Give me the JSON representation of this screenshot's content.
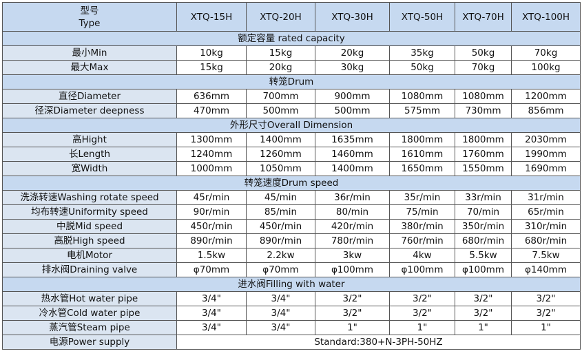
{
  "table": {
    "header": {
      "type_cn": "型号",
      "type_en": "Type",
      "models": [
        "XTQ-15H",
        "XTQ-20H",
        "XTQ-30H",
        "XTQ-50H",
        "XTQ-70H",
        "XTQ-100H"
      ]
    },
    "sections": [
      {
        "title": "额定容量 rated capacity",
        "rows": [
          {
            "label": "最小Min",
            "values": [
              "10kg",
              "15kg",
              "20kg",
              "35kg",
              "50kg",
              "70kg"
            ]
          },
          {
            "label": "最大Max",
            "values": [
              "15kg",
              "20kg",
              "30kg",
              "50kg",
              "70kg",
              "100kg"
            ]
          }
        ]
      },
      {
        "title": "转笼Drum",
        "rows": [
          {
            "label": "直径Diameter",
            "values": [
              "636mm",
              "700mm",
              "900mm",
              "1080mm",
              "1080mm",
              "1200mm"
            ]
          },
          {
            "label": "径深Diameter deepness",
            "values": [
              "470mm",
              "500mm",
              "500mm",
              "575mm",
              "730mm",
              "856mm"
            ]
          }
        ]
      },
      {
        "title": "外形尺寸Overall Dimension",
        "rows": [
          {
            "label": "高Hight",
            "values": [
              "1300mm",
              "1400mm",
              "1635mm",
              "1800mm",
              "1800mm",
              "2030mm"
            ]
          },
          {
            "label": "长Length",
            "values": [
              "1240mm",
              "1260mm",
              "1460mm",
              "1610mm",
              "1760mm",
              "1990mm"
            ]
          },
          {
            "label": "宽Width",
            "values": [
              "1000mm",
              "1050mm",
              "1400mm",
              "1650mm",
              "1550mm",
              "1690mm"
            ]
          }
        ]
      },
      {
        "title": "转笼速度Drum speed",
        "rows": [
          {
            "label": "洗涤转速Washing rotate speed",
            "values": [
              "45r/min",
              "45/min",
              "36r/min",
              "35r/min",
              "33r/min",
              "31r/min"
            ]
          },
          {
            "label": "均布转速Uniformity speed",
            "values": [
              "90r/min",
              "85/min",
              "80/min",
              "75/min",
              "70/min",
              "65r/min"
            ]
          },
          {
            "label": "中脱Mid speed",
            "values": [
              "450r/min",
              "450r/min",
              "420r/min",
              "380r/min",
              "350r/min",
              "310r/min"
            ]
          },
          {
            "label": "高脱High speed",
            "values": [
              "890r/min",
              "890r/min",
              "780r/min",
              "760r/min",
              "680r/min",
              "680r/min"
            ]
          },
          {
            "label": "电机Motor",
            "values": [
              "1.5kw",
              "2.2kw",
              "3kw",
              "4kw",
              "5.5kw",
              "7.5kw"
            ]
          },
          {
            "label": "排水阀Draining valve",
            "values": [
              "φ70mm",
              "φ70mm",
              "φ100mm",
              "φ100mm",
              "φ100mm",
              "φ140mm"
            ]
          }
        ]
      },
      {
        "title": "进水阀Filling with water",
        "rows": [
          {
            "label": "热水管Hot water pipe",
            "values": [
              "3/4\"",
              "3/4\"",
              "3/2\"",
              "3/2\"",
              "3/2\"",
              "3/2\""
            ]
          },
          {
            "label": "冷水管Cold water pipe",
            "values": [
              "3/4\"",
              "3/4\"",
              "3/2\"",
              "3/2\"",
              "3/2\"",
              "3/2\""
            ]
          },
          {
            "label": "蒸汽管Steam pipe",
            "values": [
              "3/4\"",
              "3/4\"",
              "1\"",
              "1\"",
              "1\"",
              "1\""
            ]
          }
        ]
      }
    ],
    "footer": {
      "label": "电源Power supply",
      "value": "Standard:380+N-3PH-50HZ"
    }
  }
}
